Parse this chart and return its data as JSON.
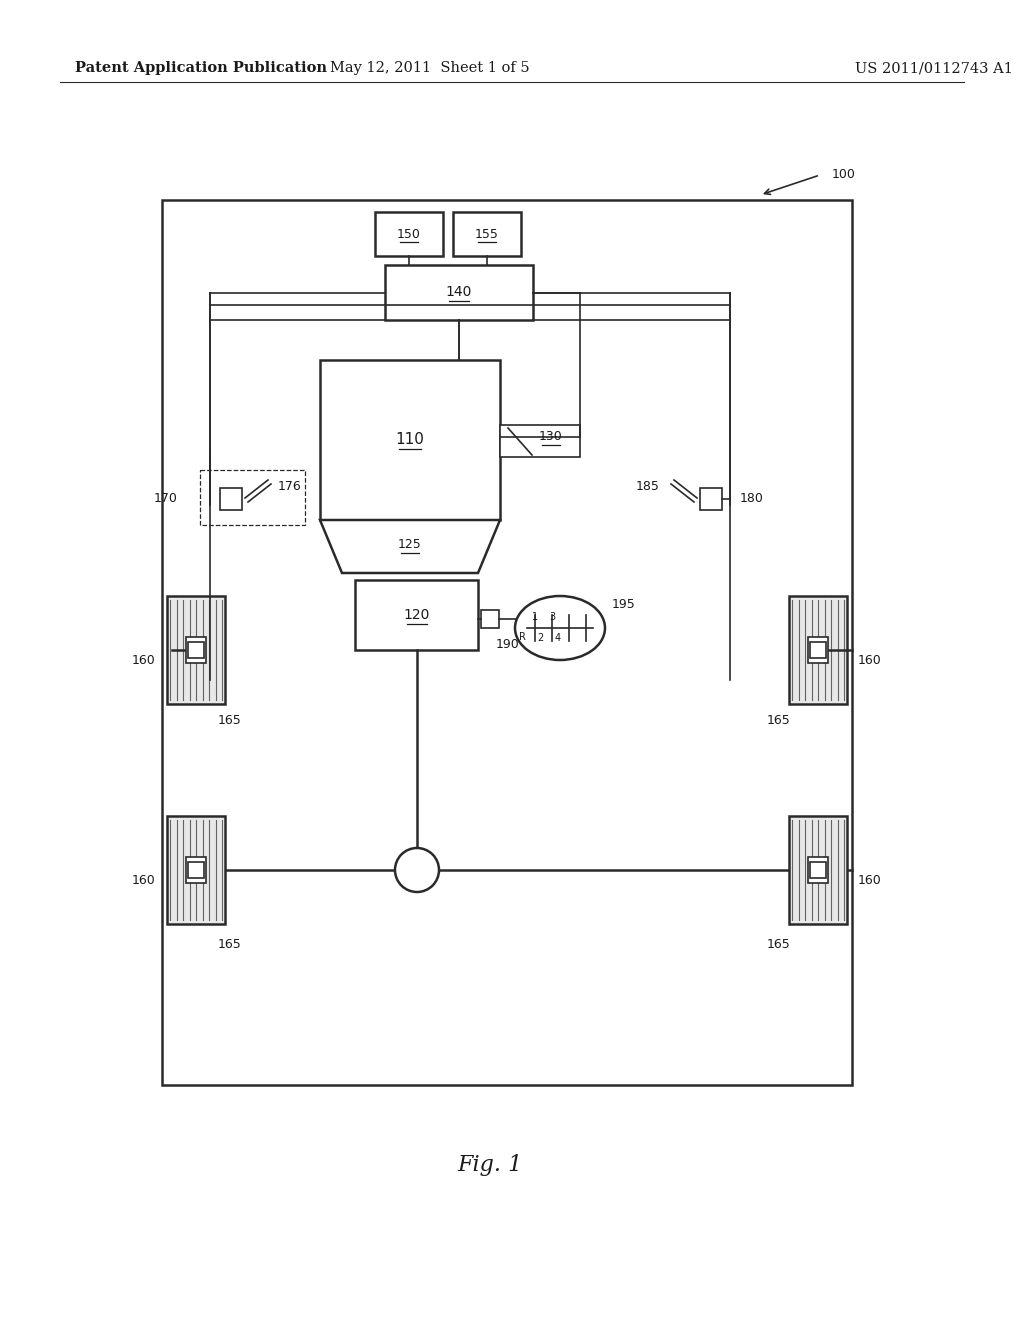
{
  "header_left": "Patent Application Publication",
  "header_mid": "May 12, 2011  Sheet 1 of 5",
  "header_right": "US 2011/0112743 A1",
  "fig_label": "Fig. 1",
  "bg_color": "#ffffff",
  "line_color": "#2a2a2a",
  "label_color": "#1a1a1a"
}
